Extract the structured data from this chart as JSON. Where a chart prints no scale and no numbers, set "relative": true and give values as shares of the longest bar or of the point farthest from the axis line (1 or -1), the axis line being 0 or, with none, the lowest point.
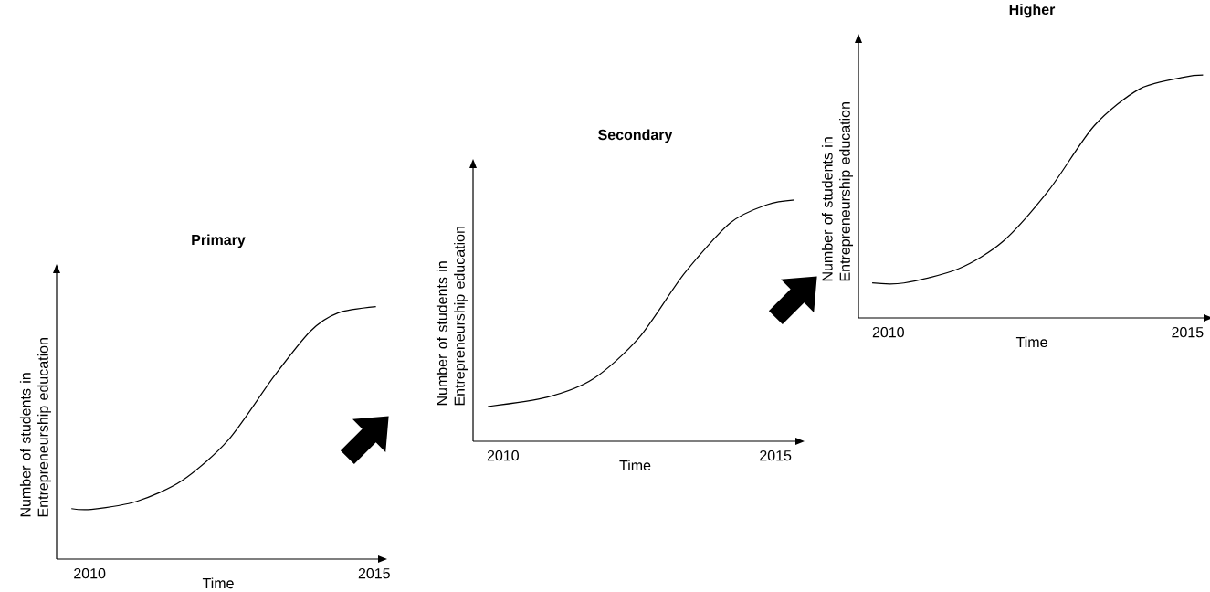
{
  "chart_data": [
    {
      "type": "line",
      "title": "Primary",
      "xlabel": "Time",
      "ylabel": "Number of students in Entrepreneurship education",
      "relative": true,
      "xlim": [
        2009.42,
        2015.1
      ],
      "xticks": [
        2010,
        2015
      ],
      "series": [
        {
          "color": "#000000",
          "x": [
            2009.68,
            2010.03,
            2010.83,
            2011.63,
            2012.44,
            2013.24,
            2013.88,
            2014.36,
            2015.03
          ],
          "values": [
            0.2,
            0.197,
            0.229,
            0.312,
            0.473,
            0.724,
            0.903,
            0.975,
            1
          ]
        }
      ]
    },
    {
      "type": "line",
      "title": "Secondary",
      "xlabel": "Time",
      "ylabel": "Number of students in Entrepreneurship education",
      "relative": true,
      "xlim": [
        2009.45,
        2015.4
      ],
      "xticks": [
        2010,
        2015
      ],
      "series": [
        {
          "color": "#000000",
          "x": [
            2009.72,
            2010.82,
            2011.66,
            2012.5,
            2013.33,
            2014.17,
            2014.85,
            2015.35
          ],
          "values": [
            0.144,
            0.183,
            0.259,
            0.43,
            0.696,
            0.905,
            0.981,
            1
          ]
        }
      ]
    },
    {
      "type": "line",
      "title": "Higher",
      "xlabel": "Time",
      "ylabel": "Number of students in Entrepreneurship education",
      "relative": true,
      "xlim": [
        2009.5,
        2015.3
      ],
      "xticks": [
        2010,
        2015
      ],
      "series": [
        {
          "color": "#000000",
          "x": [
            2009.73,
            2010.26,
            2011.17,
            2011.92,
            2012.68,
            2013.44,
            2014.2,
            2014.95,
            2015.26
          ],
          "values": [
            0.144,
            0.144,
            0.202,
            0.316,
            0.525,
            0.791,
            0.943,
            0.992,
            1
          ]
        }
      ]
    }
  ]
}
